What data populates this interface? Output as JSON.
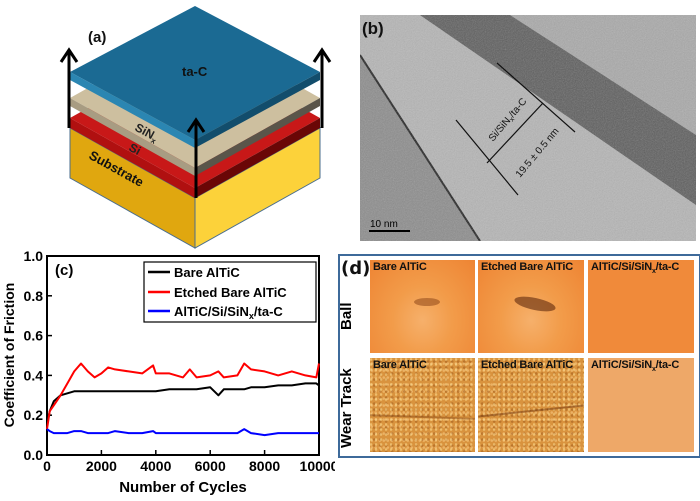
{
  "panels": {
    "a": {
      "label": "(a)",
      "layers": [
        "ta-C",
        "SiNx",
        "Si",
        "Substrate"
      ],
      "layer_labels": {
        "tac": "ta-C",
        "sinx_main": "SiN",
        "sinx_sub": "x",
        "si": "Si",
        "substrate": "Substrate"
      },
      "colors": {
        "tac": "#1f6f97",
        "sinx": "#c8bba0",
        "si": "#d21f1f",
        "substrate": "#f2bd1f"
      }
    },
    "b": {
      "label": "(b)",
      "layer_text_main": "Si/SiN",
      "layer_text_sub": "x",
      "layer_text_tail": "/ta-C",
      "thickness": "19.5 ± 0.5 nm",
      "scale_bar": "10 nm"
    },
    "c": {
      "label": "(c)"
    },
    "d": {
      "label": "(d)",
      "row_labels": [
        "Ball",
        "Wear Track"
      ],
      "column_captions": [
        "Bare AlTiC",
        "Etched Bare AlTiC",
        "AlTiC/Si/SiNx/ta-C"
      ],
      "caption_parts": {
        "c3_main": "AlTiC/Si/SiN",
        "c3_sub": "x",
        "c3_tail": "/ta-C"
      },
      "border_color": "#3e6a9a"
    }
  },
  "chart_data": {
    "type": "line",
    "title": "",
    "xlabel": "Number of Cycles",
    "ylabel": "Coefficient of Friction",
    "xlim": [
      0,
      10000
    ],
    "ylim": [
      0.0,
      1.0
    ],
    "xticks": [
      "0",
      "2000",
      "4000",
      "6000",
      "8000",
      "10000"
    ],
    "yticks": [
      "0.0",
      "0.2",
      "0.4",
      "0.6",
      "0.8",
      "1.0"
    ],
    "grid": false,
    "legend_position": "upper right",
    "x": [
      0,
      100,
      250,
      500,
      750,
      1000,
      1250,
      1500,
      1750,
      2000,
      2250,
      2500,
      3000,
      3500,
      3900,
      4000,
      4500,
      5000,
      5250,
      5500,
      6000,
      6300,
      6500,
      7000,
      7250,
      7500,
      8000,
      8500,
      9000,
      9500,
      9900,
      10000
    ],
    "series": [
      {
        "name": "Bare AlTiC",
        "color": "#000000",
        "values": [
          0.15,
          0.22,
          0.27,
          0.3,
          0.31,
          0.32,
          0.32,
          0.32,
          0.32,
          0.32,
          0.32,
          0.32,
          0.32,
          0.32,
          0.32,
          0.32,
          0.33,
          0.33,
          0.33,
          0.33,
          0.34,
          0.3,
          0.33,
          0.33,
          0.33,
          0.34,
          0.34,
          0.35,
          0.35,
          0.36,
          0.36,
          0.35
        ]
      },
      {
        "name": "Etched Bare AlTiC",
        "color": "#ff0000",
        "values": [
          0.13,
          0.22,
          0.25,
          0.3,
          0.36,
          0.42,
          0.46,
          0.42,
          0.39,
          0.41,
          0.44,
          0.43,
          0.42,
          0.41,
          0.45,
          0.41,
          0.41,
          0.39,
          0.43,
          0.39,
          0.4,
          0.42,
          0.39,
          0.4,
          0.46,
          0.43,
          0.42,
          0.4,
          0.42,
          0.4,
          0.39,
          0.46
        ]
      },
      {
        "name": "AlTiC/Si/SiNx/ta-C",
        "color": "#0000ff",
        "values": [
          0.13,
          0.12,
          0.11,
          0.11,
          0.11,
          0.12,
          0.12,
          0.11,
          0.11,
          0.11,
          0.11,
          0.12,
          0.11,
          0.11,
          0.12,
          0.11,
          0.11,
          0.11,
          0.11,
          0.11,
          0.11,
          0.11,
          0.11,
          0.11,
          0.13,
          0.11,
          0.1,
          0.11,
          0.11,
          0.11,
          0.11,
          0.11
        ]
      }
    ],
    "legend": [
      "Bare AlTiC",
      "Etched Bare AlTiC",
      "AlTiC/Si/SiNx/ta-C"
    ]
  }
}
